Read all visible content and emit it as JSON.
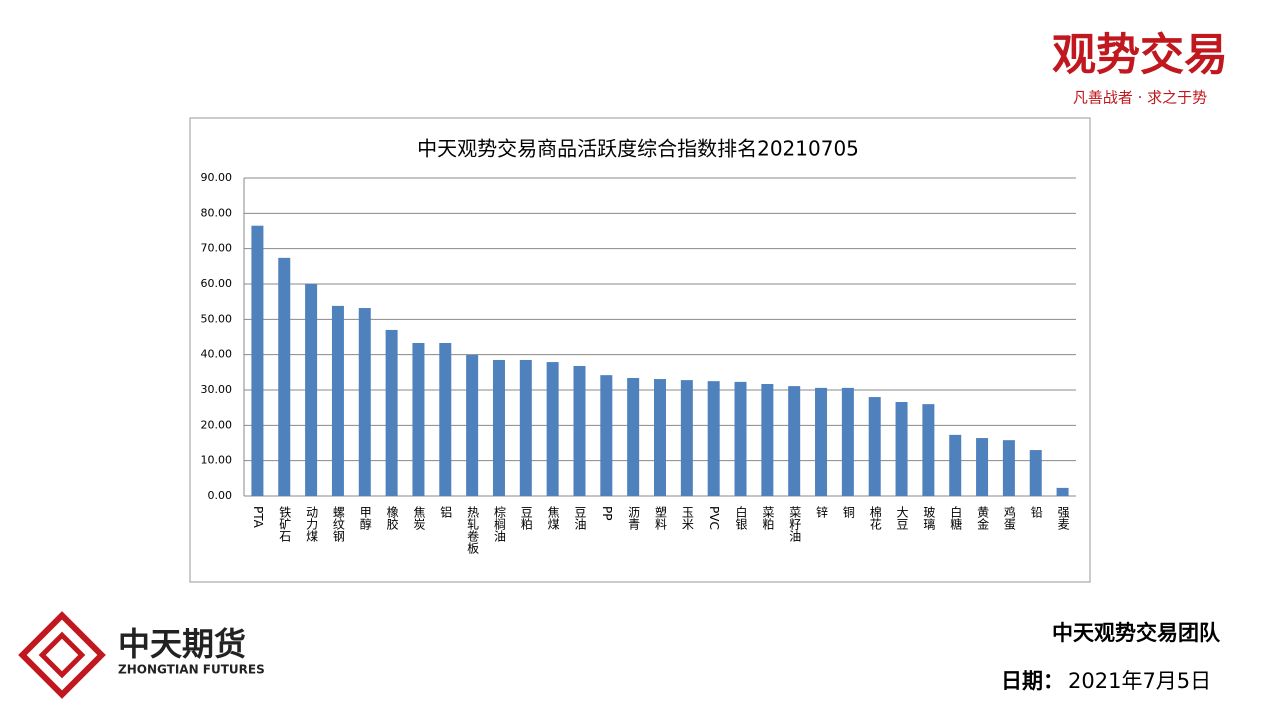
{
  "chart_data": {
    "type": "bar",
    "title": "中天观势交易商品活跃度综合指数排名20210705",
    "categories": [
      "PTA",
      "铁矿石",
      "动力煤",
      "螺纹钢",
      "甲醇",
      "橡胶",
      "焦炭",
      "铝",
      "热轧卷板",
      "棕榈油",
      "豆粕",
      "焦煤",
      "豆油",
      "PP",
      "沥青",
      "塑料",
      "玉米",
      "PVC",
      "白银",
      "菜粕",
      "菜籽油",
      "锌",
      "铜",
      "棉花",
      "大豆",
      "玻璃",
      "白糖",
      "黄金",
      "鸡蛋",
      "铅",
      "强麦"
    ],
    "values": [
      76.5,
      67.4,
      60.0,
      53.8,
      53.2,
      47.0,
      43.3,
      43.3,
      39.9,
      38.5,
      38.5,
      37.9,
      36.8,
      34.2,
      33.4,
      33.1,
      32.8,
      32.5,
      32.3,
      31.7,
      31.1,
      30.6,
      30.6,
      28.0,
      26.6,
      26.0,
      17.3,
      16.4,
      15.8,
      13.0,
      2.3
    ],
    "color": "#4f81bd",
    "ylim": [
      0,
      90
    ],
    "yticks": [
      {
        "value": 0,
        "label": "0.00"
      },
      {
        "value": 10,
        "label": "10.00"
      },
      {
        "value": 20,
        "label": "20.00"
      },
      {
        "value": 30,
        "label": "30.00"
      },
      {
        "value": 40,
        "label": "40.00"
      },
      {
        "value": 50,
        "label": "50.00"
      },
      {
        "value": 60,
        "label": "60.00"
      },
      {
        "value": 70,
        "label": "70.00"
      },
      {
        "value": 80,
        "label": "80.00"
      },
      {
        "value": 90,
        "label": "90.00"
      }
    ],
    "grid": true
  },
  "slide": {
    "brand": "观势交易",
    "slogan": "凡善战者 · 求之于势",
    "company": "中天期货",
    "company_en": "ZHONGTIAN FUTURES",
    "team": "中天观势交易团队",
    "date_label": "日期：",
    "date": "2021年7月5日"
  }
}
